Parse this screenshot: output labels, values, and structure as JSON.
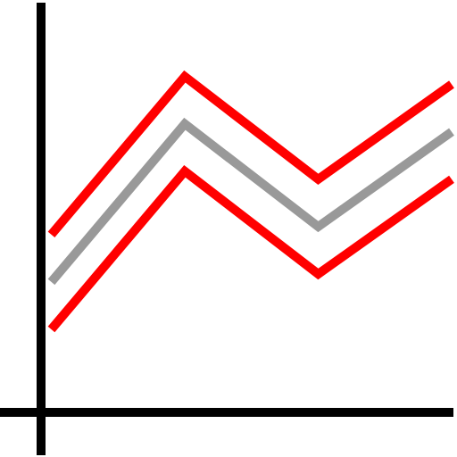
{
  "chart_data": {
    "type": "line",
    "title": "",
    "xlabel": "",
    "ylabel": "",
    "x": [
      0,
      1,
      2,
      3
    ],
    "series": [
      {
        "values": [
          2.1,
          4.1,
          2.8,
          4.0
        ],
        "color": "#ff0000"
      },
      {
        "values": [
          1.5,
          3.5,
          2.2,
          3.4
        ],
        "color": "#999999"
      },
      {
        "values": [
          0.9,
          2.9,
          1.6,
          2.8
        ],
        "color": "#ff0000"
      }
    ],
    "xlim": [
      -0.05,
      3.0
    ],
    "ylim": [
      -0.15,
      5.0
    ],
    "grid": false,
    "axis_color": "#000000"
  }
}
